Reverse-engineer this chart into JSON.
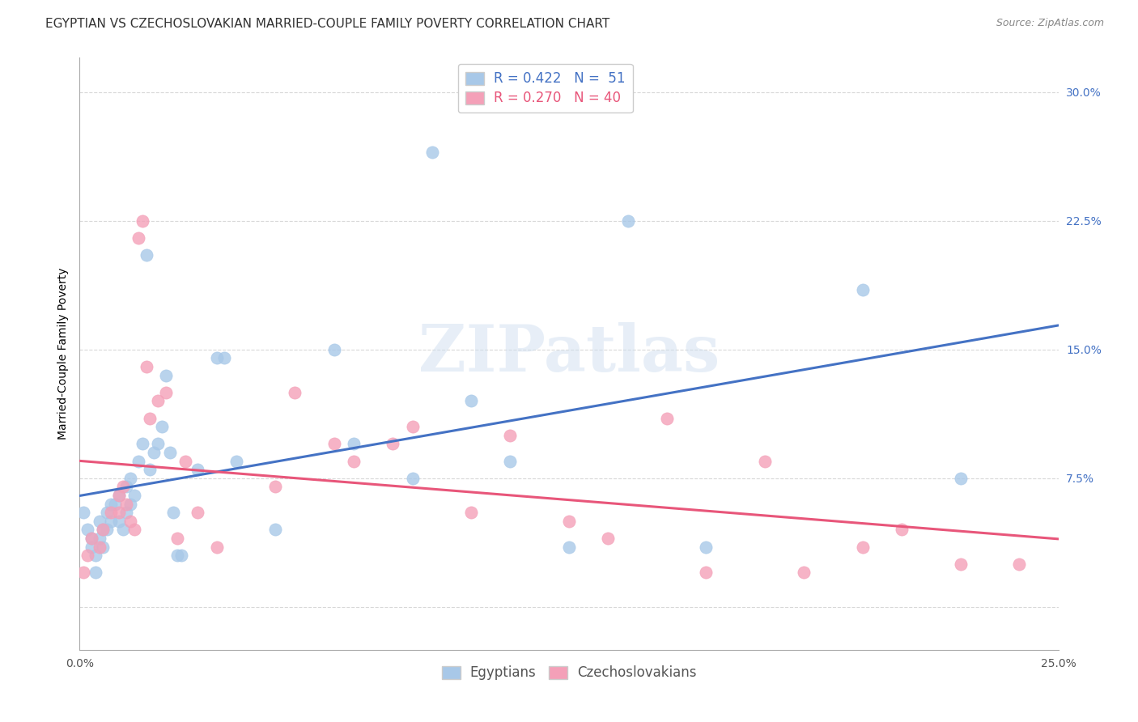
{
  "title": "EGYPTIAN VS CZECHOSLOVAKIAN MARRIED-COUPLE FAMILY POVERTY CORRELATION CHART",
  "source": "Source: ZipAtlas.com",
  "ylabel": "Married-Couple Family Poverty",
  "xlim": [
    0.0,
    25.0
  ],
  "ylim": [
    -2.5,
    32.0
  ],
  "yticks": [
    0.0,
    7.5,
    15.0,
    22.5,
    30.0
  ],
  "ytick_labels": [
    "",
    "7.5%",
    "15.0%",
    "22.5%",
    "30.0%"
  ],
  "watermark": "ZIPatlas",
  "blue_color": "#a8c8e8",
  "pink_color": "#f4a0b8",
  "blue_line_color": "#4472c4",
  "pink_line_color": "#e8567a",
  "egyptians_x": [
    0.1,
    0.2,
    0.3,
    0.3,
    0.4,
    0.4,
    0.5,
    0.5,
    0.6,
    0.6,
    0.7,
    0.7,
    0.8,
    0.8,
    0.9,
    1.0,
    1.0,
    1.1,
    1.2,
    1.2,
    1.3,
    1.3,
    1.4,
    1.5,
    1.6,
    1.7,
    1.8,
    1.9,
    2.0,
    2.1,
    2.2,
    2.3,
    2.4,
    2.5,
    2.6,
    3.0,
    3.5,
    3.7,
    4.0,
    5.0,
    6.5,
    7.0,
    8.5,
    9.0,
    10.0,
    11.0,
    12.5,
    14.0,
    16.0,
    20.0,
    22.5
  ],
  "egyptians_y": [
    5.5,
    4.5,
    4.0,
    3.5,
    3.0,
    2.0,
    5.0,
    4.0,
    4.5,
    3.5,
    5.5,
    4.5,
    6.0,
    5.0,
    6.0,
    6.5,
    5.0,
    4.5,
    7.0,
    5.5,
    6.0,
    7.5,
    6.5,
    8.5,
    9.5,
    20.5,
    8.0,
    9.0,
    9.5,
    10.5,
    13.5,
    9.0,
    5.5,
    3.0,
    3.0,
    8.0,
    14.5,
    14.5,
    8.5,
    4.5,
    15.0,
    9.5,
    7.5,
    26.5,
    12.0,
    8.5,
    3.5,
    22.5,
    3.5,
    18.5,
    7.5
  ],
  "czechoslovakians_x": [
    0.1,
    0.2,
    0.3,
    0.5,
    0.6,
    0.8,
    1.0,
    1.0,
    1.1,
    1.2,
    1.3,
    1.4,
    1.5,
    1.6,
    1.7,
    1.8,
    2.0,
    2.2,
    2.5,
    2.7,
    3.0,
    3.5,
    5.0,
    5.5,
    6.5,
    7.0,
    8.0,
    8.5,
    10.0,
    11.0,
    12.5,
    13.5,
    15.0,
    16.0,
    17.5,
    18.5,
    20.0,
    21.0,
    22.5,
    24.0
  ],
  "czechoslovakians_y": [
    2.0,
    3.0,
    4.0,
    3.5,
    4.5,
    5.5,
    5.5,
    6.5,
    7.0,
    6.0,
    5.0,
    4.5,
    21.5,
    22.5,
    14.0,
    11.0,
    12.0,
    12.5,
    4.0,
    8.5,
    5.5,
    3.5,
    7.0,
    12.5,
    9.5,
    8.5,
    9.5,
    10.5,
    5.5,
    10.0,
    5.0,
    4.0,
    11.0,
    2.0,
    8.5,
    2.0,
    3.5,
    4.5,
    2.5,
    2.5
  ],
  "title_fontsize": 11,
  "source_fontsize": 9,
  "axis_label_fontsize": 10,
  "tick_fontsize": 10,
  "legend_fontsize": 11,
  "background_color": "#ffffff",
  "grid_color": "#d8d8d8"
}
